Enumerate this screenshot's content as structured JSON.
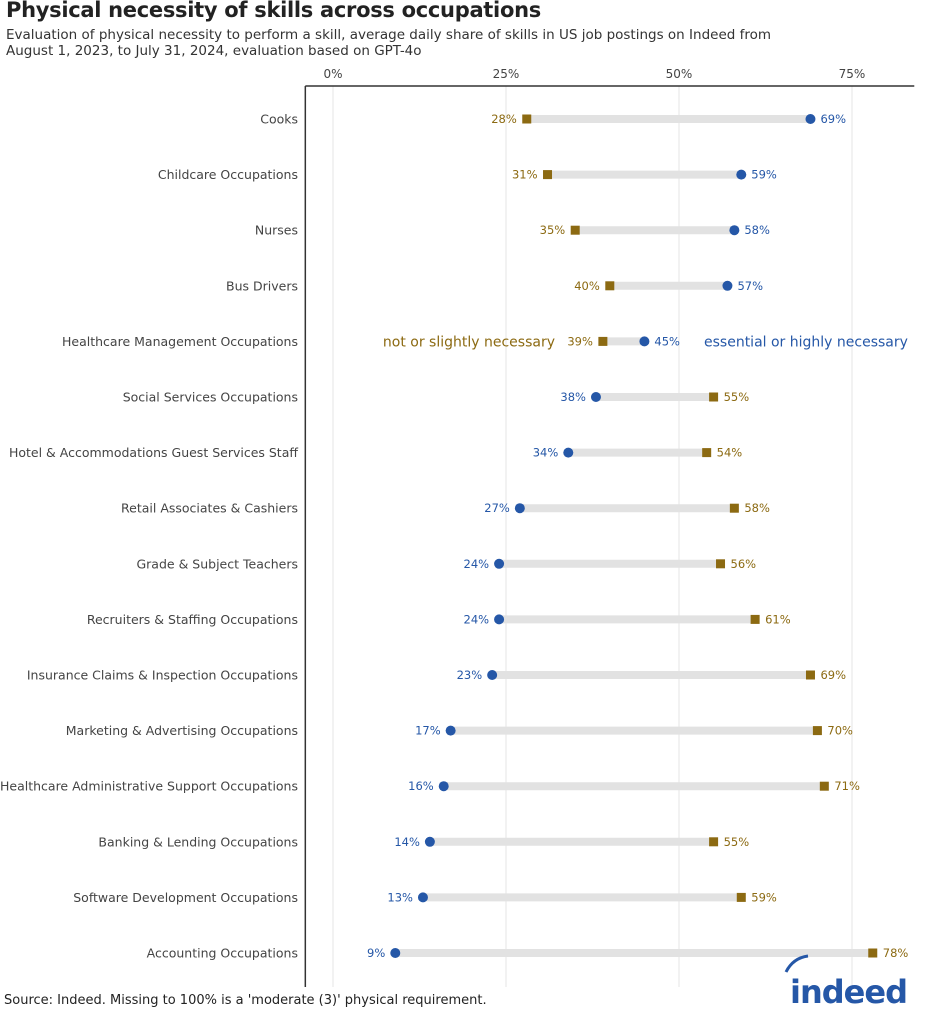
{
  "title": "Physical necessity of skills across occupations",
  "subtitle": "Evaluation of physical necessity to perform a skill, average daily share of skills in US job postings on Indeed from August 1, 2023, to July 31, 2024, evaluation based on GPT-4o",
  "source": "Source: Indeed. Missing to 100% is a 'moderate (3)' physical requirement.",
  "logo_text": "indeed",
  "chart_data": {
    "type": "dumbbell",
    "x_ticks": [
      "0%",
      "25%",
      "50%",
      "75%"
    ],
    "x_tick_values": [
      0,
      25,
      50,
      75
    ],
    "xlim": [
      -4,
      84
    ],
    "grid": true,
    "annotations": {
      "not": "not or slightly necessary",
      "essential": "essential or highly necessary"
    },
    "colors": {
      "not": "#8c6a12",
      "essential": "#2557a7",
      "bar": "#e2e2e2"
    },
    "categories": [
      "Cooks",
      "Childcare Occupations",
      "Nurses",
      "Bus Drivers",
      "Healthcare Management Occupations",
      "Social Services Occupations",
      "Hotel & Accommodations Guest Services Staff",
      "Retail Associates & Cashiers",
      "Grade & Subject Teachers",
      "Recruiters & Staffing Occupations",
      "Insurance Claims & Inspection Occupations",
      "Marketing & Advertising Occupations",
      "Healthcare Administrative Support Occupations",
      "Banking & Lending Occupations",
      "Software Development Occupations",
      "Accounting Occupations"
    ],
    "series": [
      {
        "name": "not or slightly necessary",
        "values": [
          28,
          31,
          35,
          40,
          39,
          55,
          54,
          58,
          56,
          61,
          69,
          70,
          71,
          55,
          59,
          78
        ]
      },
      {
        "name": "essential or highly necessary",
        "values": [
          69,
          59,
          58,
          57,
          45,
          38,
          34,
          27,
          24,
          24,
          23,
          17,
          16,
          14,
          13,
          9
        ]
      }
    ]
  }
}
